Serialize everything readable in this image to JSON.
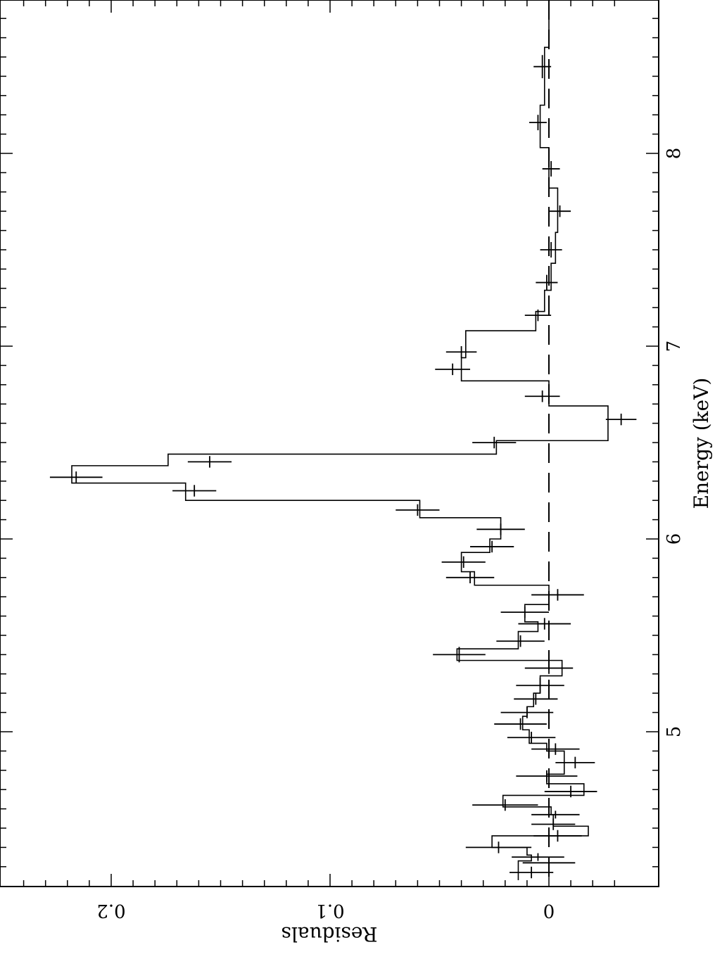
{
  "chart_data": {
    "type": "line",
    "orientation": "rotated-90-clockwise",
    "xlabel": "Energy (keV)",
    "ylabel": "Residuals",
    "xlim": [
      4.2,
      8.75
    ],
    "ylim": [
      -0.035,
      0.245
    ],
    "x_ticks": [
      5,
      6,
      7,
      8
    ],
    "x_tick_labels": [
      "5",
      "6",
      "7",
      "8"
    ],
    "y_ticks": [
      0,
      0.1,
      0.2
    ],
    "y_tick_labels": [
      "0",
      "0.1",
      "0.2"
    ],
    "reference_line": {
      "y": 0,
      "style": "dashed"
    },
    "series": [
      {
        "values": [
          {
            "x": 4.27,
            "y": 0.008,
            "xerr": 0.03,
            "yerr": 0.01
          },
          {
            "x": 4.32,
            "y": 0.0,
            "xerr": 0.02,
            "yerr": 0.012
          },
          {
            "x": 4.35,
            "y": 0.005,
            "xerr": 0.02,
            "yerr": 0.012
          },
          {
            "x": 4.4,
            "y": 0.023,
            "xerr": 0.03,
            "yerr": 0.015
          },
          {
            "x": 4.46,
            "y": -0.004,
            "xerr": 0.03,
            "yerr": 0.011
          },
          {
            "x": 4.52,
            "y": -0.002,
            "xerr": 0.03,
            "yerr": 0.01
          },
          {
            "x": 4.57,
            "y": -0.003,
            "xerr": 0.02,
            "yerr": 0.011
          },
          {
            "x": 4.62,
            "y": 0.02,
            "xerr": 0.03,
            "yerr": 0.015
          },
          {
            "x": 4.69,
            "y": -0.01,
            "xerr": 0.03,
            "yerr": 0.012
          },
          {
            "x": 4.77,
            "y": 0.001,
            "xerr": 0.03,
            "yerr": 0.014
          },
          {
            "x": 4.84,
            "y": -0.012,
            "xerr": 0.03,
            "yerr": 0.009
          },
          {
            "x": 4.91,
            "y": -0.003,
            "xerr": 0.03,
            "yerr": 0.011
          },
          {
            "x": 4.97,
            "y": 0.008,
            "xerr": 0.03,
            "yerr": 0.011
          },
          {
            "x": 5.04,
            "y": 0.013,
            "xerr": 0.03,
            "yerr": 0.012
          },
          {
            "x": 5.1,
            "y": 0.01,
            "xerr": 0.03,
            "yerr": 0.012
          },
          {
            "x": 5.17,
            "y": 0.006,
            "xerr": 0.03,
            "yerr": 0.01
          },
          {
            "x": 5.24,
            "y": 0.004,
            "xerr": 0.04,
            "yerr": 0.011
          },
          {
            "x": 5.33,
            "y": 0.0,
            "xerr": 0.03,
            "yerr": 0.011
          },
          {
            "x": 5.4,
            "y": 0.041,
            "xerr": 0.04,
            "yerr": 0.012
          },
          {
            "x": 5.47,
            "y": 0.013,
            "xerr": 0.03,
            "yerr": 0.011
          },
          {
            "x": 5.56,
            "y": 0.002,
            "xerr": 0.03,
            "yerr": 0.012
          },
          {
            "x": 5.62,
            "y": 0.011,
            "xerr": 0.03,
            "yerr": 0.011
          },
          {
            "x": 5.71,
            "y": -0.004,
            "xerr": 0.03,
            "yerr": 0.012
          },
          {
            "x": 5.8,
            "y": 0.036,
            "xerr": 0.03,
            "yerr": 0.011
          },
          {
            "x": 5.88,
            "y": 0.039,
            "xerr": 0.03,
            "yerr": 0.01
          },
          {
            "x": 5.96,
            "y": 0.026,
            "xerr": 0.03,
            "yerr": 0.01
          },
          {
            "x": 6.05,
            "y": 0.022,
            "xerr": 0.03,
            "yerr": 0.011
          },
          {
            "x": 6.15,
            "y": 0.06,
            "xerr": 0.03,
            "yerr": 0.01
          },
          {
            "x": 6.25,
            "y": 0.162,
            "xerr": 0.03,
            "yerr": 0.01
          },
          {
            "x": 6.32,
            "y": 0.216,
            "xerr": 0.03,
            "yerr": 0.012
          },
          {
            "x": 6.4,
            "y": 0.155,
            "xerr": 0.03,
            "yerr": 0.01
          },
          {
            "x": 6.5,
            "y": 0.025,
            "xerr": 0.03,
            "yerr": 0.01
          },
          {
            "x": 6.62,
            "y": -0.033,
            "xerr": 0.03,
            "yerr": 0.007
          },
          {
            "x": 6.74,
            "y": 0.003,
            "xerr": 0.03,
            "yerr": 0.008
          },
          {
            "x": 6.88,
            "y": 0.044,
            "xerr": 0.03,
            "yerr": 0.008
          },
          {
            "x": 6.97,
            "y": 0.04,
            "xerr": 0.03,
            "yerr": 0.007
          },
          {
            "x": 7.16,
            "y": 0.005,
            "xerr": 0.03,
            "yerr": 0.006
          },
          {
            "x": 7.33,
            "y": 0.001,
            "xerr": 0.04,
            "yerr": 0.005
          },
          {
            "x": 7.5,
            "y": -0.001,
            "xerr": 0.04,
            "yerr": 0.005
          },
          {
            "x": 7.7,
            "y": -0.005,
            "xerr": 0.03,
            "yerr": 0.005
          },
          {
            "x": 7.92,
            "y": -0.001,
            "xerr": 0.04,
            "yerr": 0.004
          },
          {
            "x": 8.16,
            "y": 0.005,
            "xerr": 0.04,
            "yerr": 0.004
          },
          {
            "x": 8.45,
            "y": 0.003,
            "xerr": 0.06,
            "yerr": 0.004
          }
        ]
      }
    ],
    "model_steps": [
      {
        "x0": 4.23,
        "x1": 4.33,
        "y": 0.014
      },
      {
        "x0": 4.33,
        "x1": 4.36,
        "y": 0.008
      },
      {
        "x0": 4.36,
        "x1": 4.4,
        "y": 0.01
      },
      {
        "x0": 4.4,
        "x1": 4.46,
        "y": 0.026
      },
      {
        "x0": 4.46,
        "x1": 4.51,
        "y": -0.018
      },
      {
        "x0": 4.51,
        "x1": 4.57,
        "y": -0.002
      },
      {
        "x0": 4.57,
        "x1": 4.61,
        "y": -0.001
      },
      {
        "x0": 4.61,
        "x1": 4.67,
        "y": 0.021
      },
      {
        "x0": 4.67,
        "x1": 4.73,
        "y": -0.016
      },
      {
        "x0": 4.73,
        "x1": 4.78,
        "y": 0.001
      },
      {
        "x0": 4.78,
        "x1": 4.9,
        "y": -0.007
      },
      {
        "x0": 4.9,
        "x1": 4.94,
        "y": 0.001
      },
      {
        "x0": 4.94,
        "x1": 5.01,
        "y": 0.009
      },
      {
        "x0": 5.01,
        "x1": 5.08,
        "y": 0.012
      },
      {
        "x0": 5.08,
        "x1": 5.13,
        "y": 0.01
      },
      {
        "x0": 5.13,
        "x1": 5.2,
        "y": 0.007
      },
      {
        "x0": 5.2,
        "x1": 5.29,
        "y": 0.004
      },
      {
        "x0": 5.29,
        "x1": 5.37,
        "y": -0.006
      },
      {
        "x0": 5.37,
        "x1": 5.43,
        "y": 0.042
      },
      {
        "x0": 5.43,
        "x1": 5.52,
        "y": 0.014
      },
      {
        "x0": 5.52,
        "x1": 5.57,
        "y": 0.005
      },
      {
        "x0": 5.57,
        "x1": 5.66,
        "y": 0.011
      },
      {
        "x0": 5.66,
        "x1": 5.76,
        "y": 0.0
      },
      {
        "x0": 5.76,
        "x1": 5.83,
        "y": 0.034
      },
      {
        "x0": 5.83,
        "x1": 5.93,
        "y": 0.04
      },
      {
        "x0": 5.93,
        "x1": 6.0,
        "y": 0.027
      },
      {
        "x0": 6.0,
        "x1": 6.11,
        "y": 0.022
      },
      {
        "x0": 6.11,
        "x1": 6.2,
        "y": 0.059
      },
      {
        "x0": 6.2,
        "x1": 6.29,
        "y": 0.166
      },
      {
        "x0": 6.29,
        "x1": 6.38,
        "y": 0.218
      },
      {
        "x0": 6.38,
        "x1": 6.44,
        "y": 0.174
      },
      {
        "x0": 6.44,
        "x1": 6.51,
        "y": 0.024
      },
      {
        "x0": 6.51,
        "x1": 6.69,
        "y": -0.027
      },
      {
        "x0": 6.69,
        "x1": 6.82,
        "y": 0.0
      },
      {
        "x0": 6.82,
        "x1": 6.94,
        "y": 0.04
      },
      {
        "x0": 6.94,
        "x1": 7.08,
        "y": 0.038
      },
      {
        "x0": 7.08,
        "x1": 7.18,
        "y": 0.006
      },
      {
        "x0": 7.18,
        "x1": 7.29,
        "y": 0.002
      },
      {
        "x0": 7.29,
        "x1": 7.43,
        "y": -0.001
      },
      {
        "x0": 7.43,
        "x1": 7.59,
        "y": -0.003
      },
      {
        "x0": 7.59,
        "x1": 7.82,
        "y": -0.004
      },
      {
        "x0": 7.82,
        "x1": 8.03,
        "y": 0.0
      },
      {
        "x0": 8.03,
        "x1": 8.25,
        "y": 0.004
      },
      {
        "x0": 8.25,
        "x1": 8.55,
        "y": 0.002
      },
      {
        "x0": 8.55,
        "x1": 8.75,
        "y": 0.0
      }
    ]
  }
}
